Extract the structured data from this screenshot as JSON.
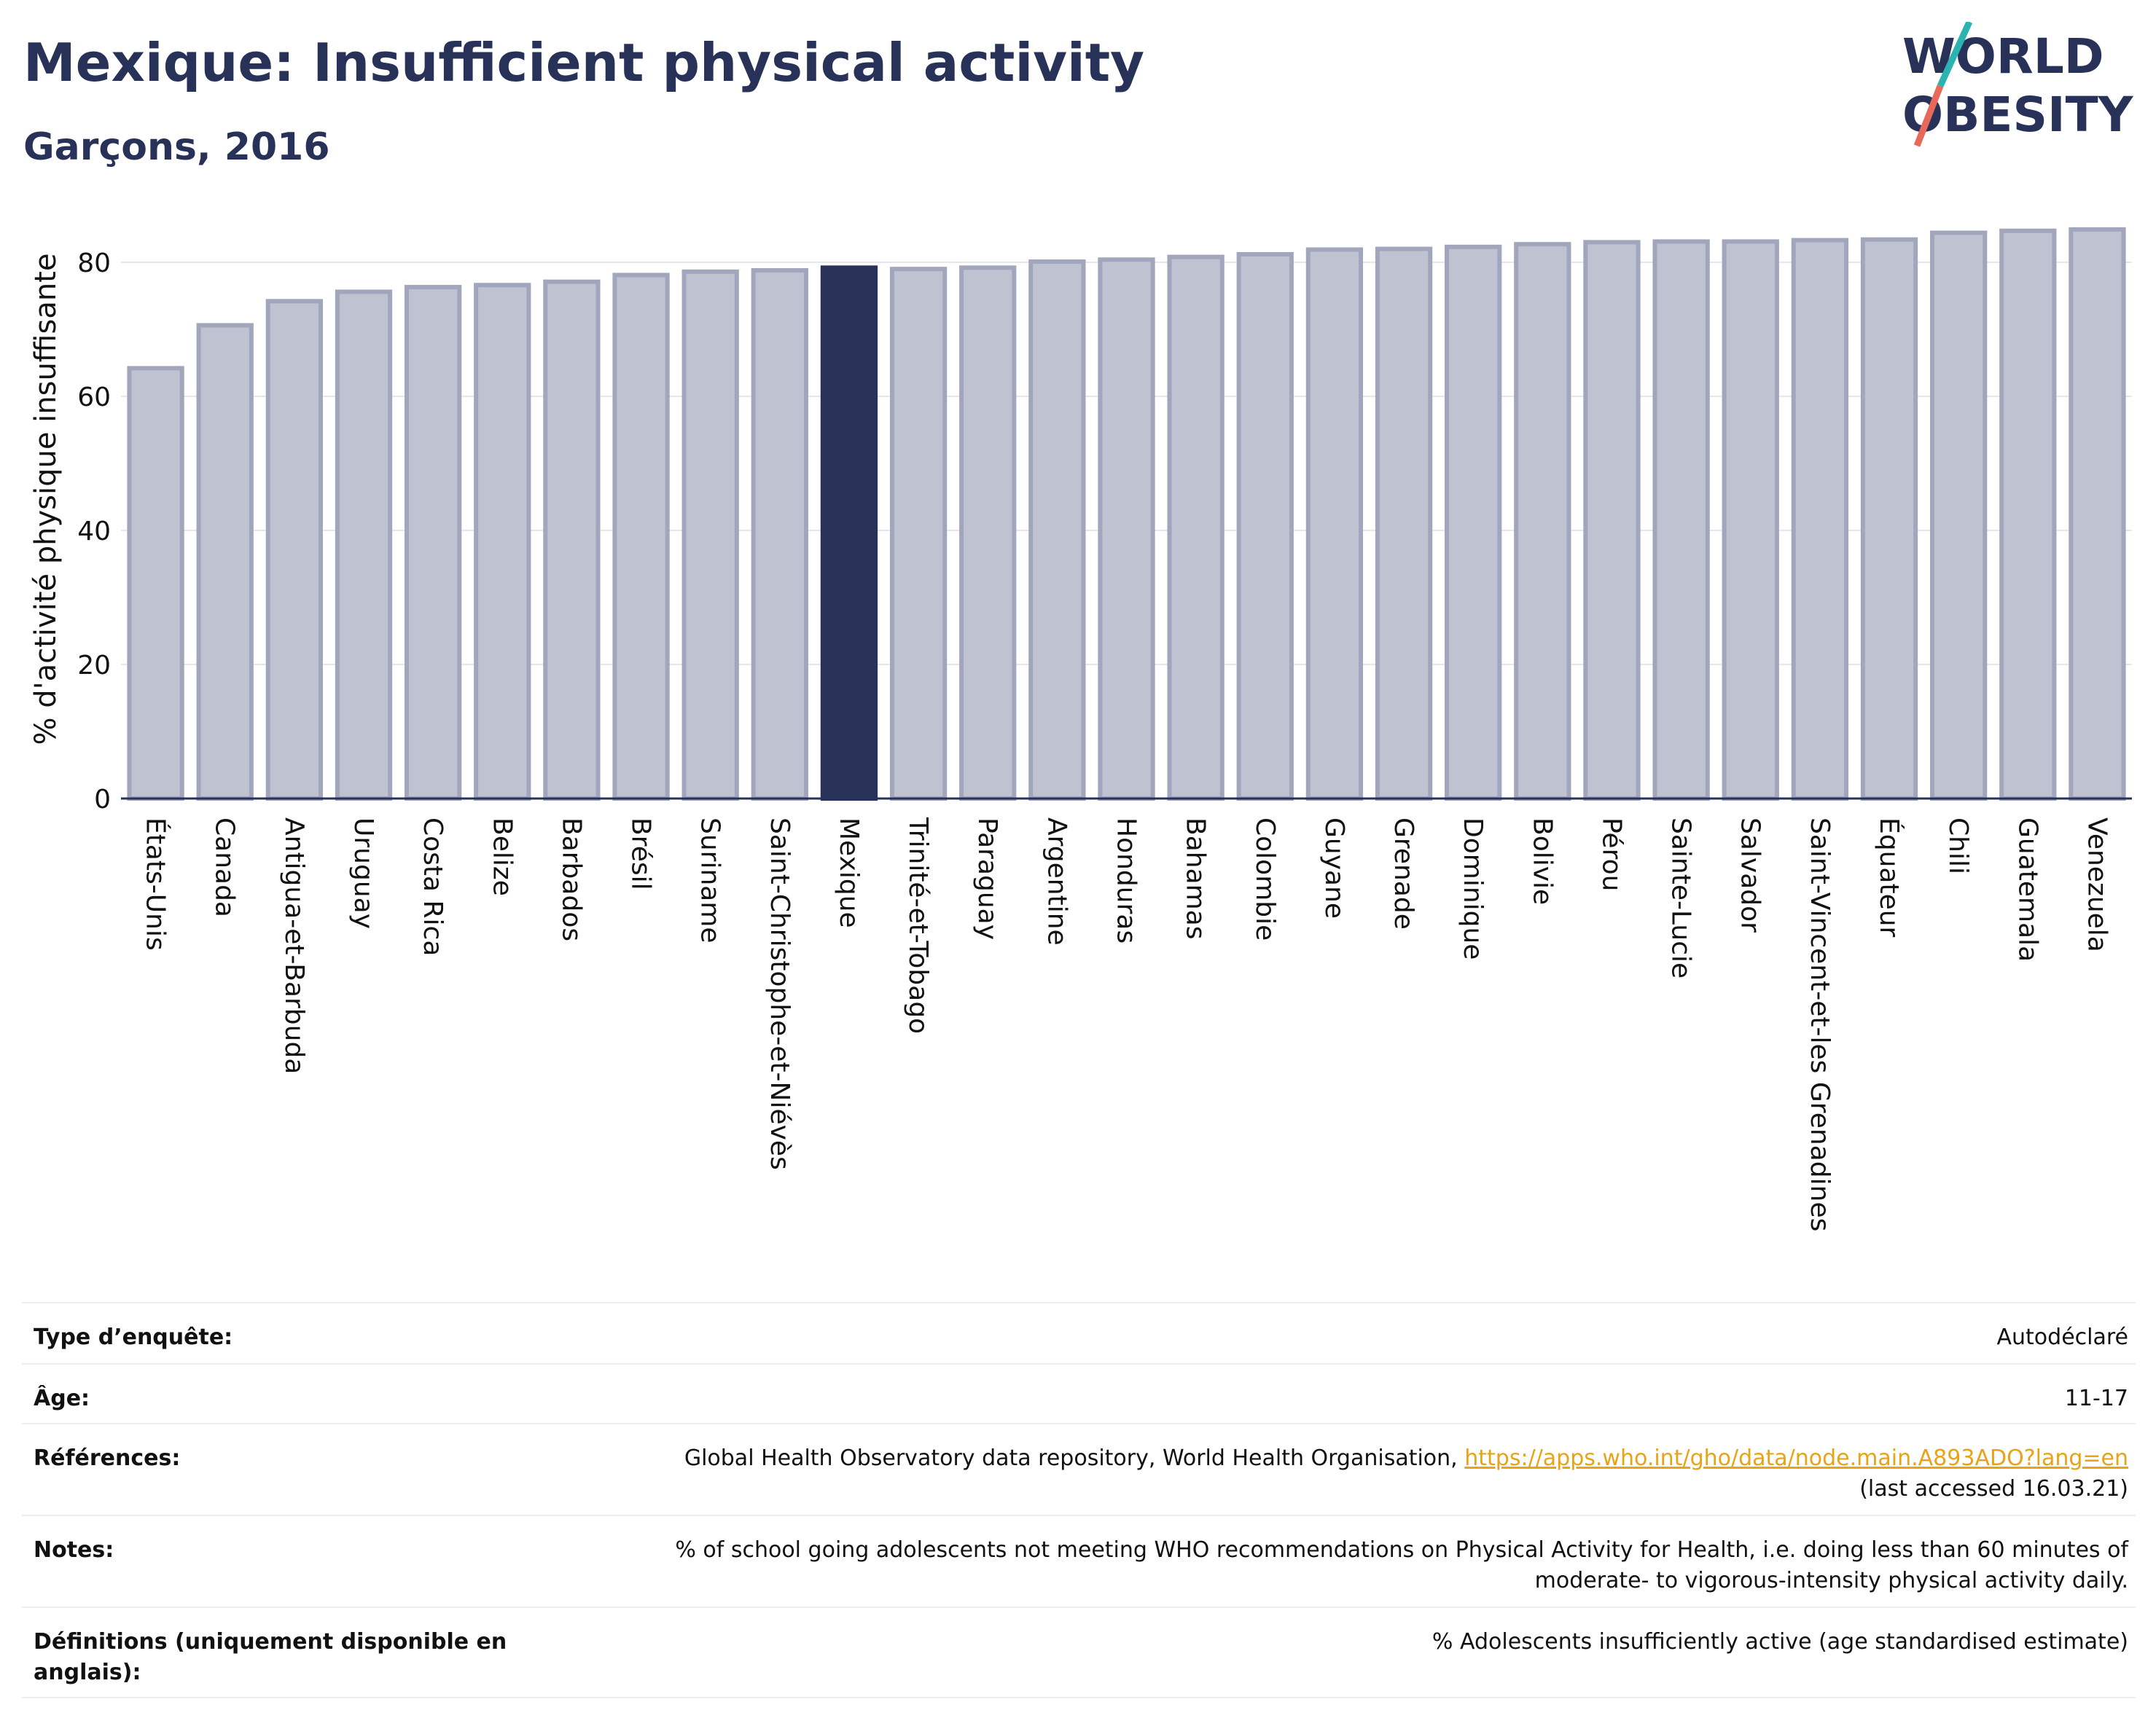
{
  "header": {
    "title": "Mexique: Insufficient physical activity",
    "subtitle": "Garçons, 2016"
  },
  "logo": {
    "line1": "WORLD",
    "line2": "OBESITY"
  },
  "colors": {
    "bar": "#bfc2d0",
    "bar_stroke": "#a2a6bd",
    "highlight": "#283259",
    "text": "#283259",
    "grid": "#e6e7ec",
    "link": "#e8a317",
    "logo_teal": "#2bb3b1",
    "logo_red": "#e8685a"
  },
  "chart_data": {
    "type": "bar",
    "ylabel": "% d'activité physique insuffisante",
    "xlabel": "",
    "ylim": [
      0,
      88
    ],
    "yticks": [
      0,
      20,
      40,
      60,
      80
    ],
    "grid": true,
    "highlight": "Mexique",
    "categories": [
      "États-Unis",
      "Canada",
      "Antigua-et-Barbuda",
      "Uruguay",
      "Costa Rica",
      "Belize",
      "Barbados",
      "Brésil",
      "Suriname",
      "Saint-Christophe-et-Niévès",
      "Mexique",
      "Trinité-et-Tobago",
      "Paraguay",
      "Argentine",
      "Honduras",
      "Bahamas",
      "Colombie",
      "Guyane",
      "Grenade",
      "Dominique",
      "Bolivie",
      "Pérou",
      "Sainte-Lucie",
      "Salvador",
      "Saint-Vincent-et-les Grenadines",
      "Équateur",
      "Chili",
      "Guatemala",
      "Venezuela"
    ],
    "values": [
      64.2,
      70.6,
      74.2,
      75.6,
      76.3,
      76.6,
      77.1,
      78.1,
      78.6,
      78.8,
      79.2,
      79.0,
      79.2,
      80.1,
      80.4,
      80.8,
      81.2,
      81.9,
      82.0,
      82.3,
      82.7,
      83.0,
      83.1,
      83.1,
      83.3,
      83.4,
      84.4,
      84.7,
      84.9
    ]
  },
  "details": [
    {
      "label": "Type d’enquête:",
      "value": "Autodéclaré"
    },
    {
      "label": "Âge:",
      "value": "11-17"
    },
    {
      "label": "Références:",
      "value": "Global Health Observatory data repository, World Health Organisation,",
      "link": "https://apps.who.int/gho/data/node.main.A893ADO?lang=en",
      "value2": "(last accessed 16.03.21)"
    },
    {
      "label": "Notes:",
      "value": "% of school going adolescents not meeting WHO recommendations on Physical Activity for Health, i.e. doing less than 60 minutes of moderate- to vigorous-intensity physical activity daily."
    },
    {
      "label": "Définitions (uniquement disponible en anglais):",
      "value": "% Adolescents insufficiently active (age standardised estimate)"
    }
  ]
}
